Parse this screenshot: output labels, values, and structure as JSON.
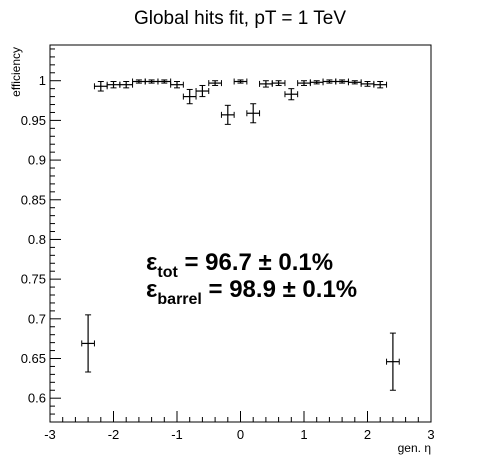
{
  "chart_data": {
    "type": "scatter",
    "title": "Global hits fit, pT = 1 TeV",
    "xlabel": "gen. η",
    "ylabel": "efficiency",
    "xlim": [
      -3,
      3
    ],
    "ylim": [
      0.57,
      1.045
    ],
    "grid": false,
    "x_ticks": [
      "-3",
      "-2",
      "-1",
      "0",
      "1",
      "2",
      "3"
    ],
    "y_ticks": [
      "0.6",
      "0.65",
      "0.7",
      "0.75",
      "0.8",
      "0.85",
      "0.9",
      "0.95",
      "1"
    ],
    "series": [
      {
        "points": [
          {
            "x": -2.4,
            "xerr": 0.1,
            "y": 0.669,
            "yerr": 0.036
          },
          {
            "x": -2.2,
            "xerr": 0.1,
            "y": 0.993,
            "yerr": 0.006
          },
          {
            "x": -2.0,
            "xerr": 0.1,
            "y": 0.995,
            "yerr": 0.004
          },
          {
            "x": -1.8,
            "xerr": 0.1,
            "y": 0.995,
            "yerr": 0.004
          },
          {
            "x": -1.6,
            "xerr": 0.1,
            "y": 0.999,
            "yerr": 0.002
          },
          {
            "x": -1.4,
            "xerr": 0.1,
            "y": 0.999,
            "yerr": 0.002
          },
          {
            "x": -1.2,
            "xerr": 0.1,
            "y": 0.999,
            "yerr": 0.002
          },
          {
            "x": -1.0,
            "xerr": 0.1,
            "y": 0.995,
            "yerr": 0.004
          },
          {
            "x": -0.8,
            "xerr": 0.1,
            "y": 0.98,
            "yerr": 0.009
          },
          {
            "x": -0.6,
            "xerr": 0.1,
            "y": 0.987,
            "yerr": 0.007
          },
          {
            "x": -0.4,
            "xerr": 0.1,
            "y": 0.997,
            "yerr": 0.003
          },
          {
            "x": -0.2,
            "xerr": 0.1,
            "y": 0.957,
            "yerr": 0.012
          },
          {
            "x": 0.0,
            "xerr": 0.1,
            "y": 0.999,
            "yerr": 0.002
          },
          {
            "x": 0.2,
            "xerr": 0.1,
            "y": 0.959,
            "yerr": 0.012
          },
          {
            "x": 0.4,
            "xerr": 0.1,
            "y": 0.996,
            "yerr": 0.004
          },
          {
            "x": 0.6,
            "xerr": 0.1,
            "y": 0.997,
            "yerr": 0.003
          },
          {
            "x": 0.8,
            "xerr": 0.1,
            "y": 0.983,
            "yerr": 0.007
          },
          {
            "x": 1.0,
            "xerr": 0.1,
            "y": 0.997,
            "yerr": 0.003
          },
          {
            "x": 1.2,
            "xerr": 0.1,
            "y": 0.998,
            "yerr": 0.002
          },
          {
            "x": 1.4,
            "xerr": 0.1,
            "y": 0.999,
            "yerr": 0.002
          },
          {
            "x": 1.6,
            "xerr": 0.1,
            "y": 0.999,
            "yerr": 0.002
          },
          {
            "x": 1.8,
            "xerr": 0.1,
            "y": 0.998,
            "yerr": 0.002
          },
          {
            "x": 2.0,
            "xerr": 0.1,
            "y": 0.996,
            "yerr": 0.003
          },
          {
            "x": 2.2,
            "xerr": 0.1,
            "y": 0.995,
            "yerr": 0.004
          },
          {
            "x": 2.4,
            "xerr": 0.1,
            "y": 0.646,
            "yerr": 0.036
          }
        ]
      }
    ],
    "annotations": [
      {
        "symbol": "ε",
        "subscript": "tot",
        "text": " = 96.7 ± 0.1%"
      },
      {
        "symbol": "ε",
        "subscript": "barrel",
        "text": " = 98.9 ± 0.1%"
      }
    ]
  }
}
